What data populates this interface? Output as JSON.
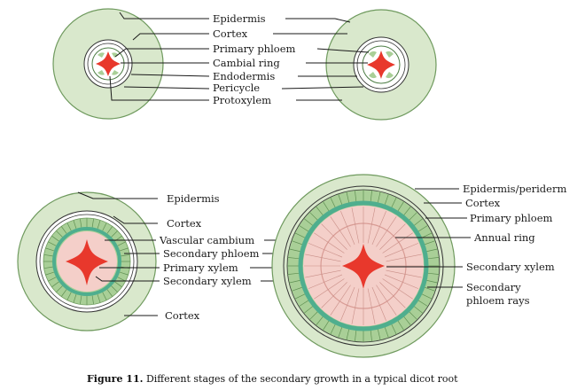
{
  "colors": {
    "cortex": "#d9e8cc",
    "cortex_edge": "#6f9a5e",
    "stele": "#f4cfc9",
    "xylem": "#e8382c",
    "cambium": "#4fae8e",
    "phloem": "#a9cf97",
    "ink": "#1a1a1a"
  },
  "stage1": {
    "labels": {
      "epidermis": "Epidermis",
      "cortex": "Cortex",
      "primary_phloem": "Primary phloem",
      "cambial_ring": "Cambial ring",
      "endodermis": "Endodermis",
      "pericycle": "Pericycle",
      "protoxylem": "Protoxylem"
    }
  },
  "stage3": {
    "labels": {
      "epidermis": "Epidermis",
      "cortex_top": "Cortex",
      "vascular_cambium": "Vascular cambium",
      "secondary_phloem": "Secondary phloem",
      "primary_xylem": "Primary xylem",
      "secondary_xylem": "Secondary xylem",
      "cortex_bottom": "Cortex"
    }
  },
  "stage4": {
    "labels": {
      "epidermis_periderm": "Epidermis/periderm",
      "cortex": "Cortex",
      "primary_phloem": "Primary phloem",
      "annual_ring": "Annual ring",
      "secondary_xylem": "Secondary xylem",
      "secondary_phloem_rays_1": "Secondary",
      "secondary_phloem_rays_2": "phloem rays"
    }
  },
  "caption": {
    "figure": "Figure 11.",
    "text": " Different stages of the secondary growth in a typical dicot root"
  }
}
